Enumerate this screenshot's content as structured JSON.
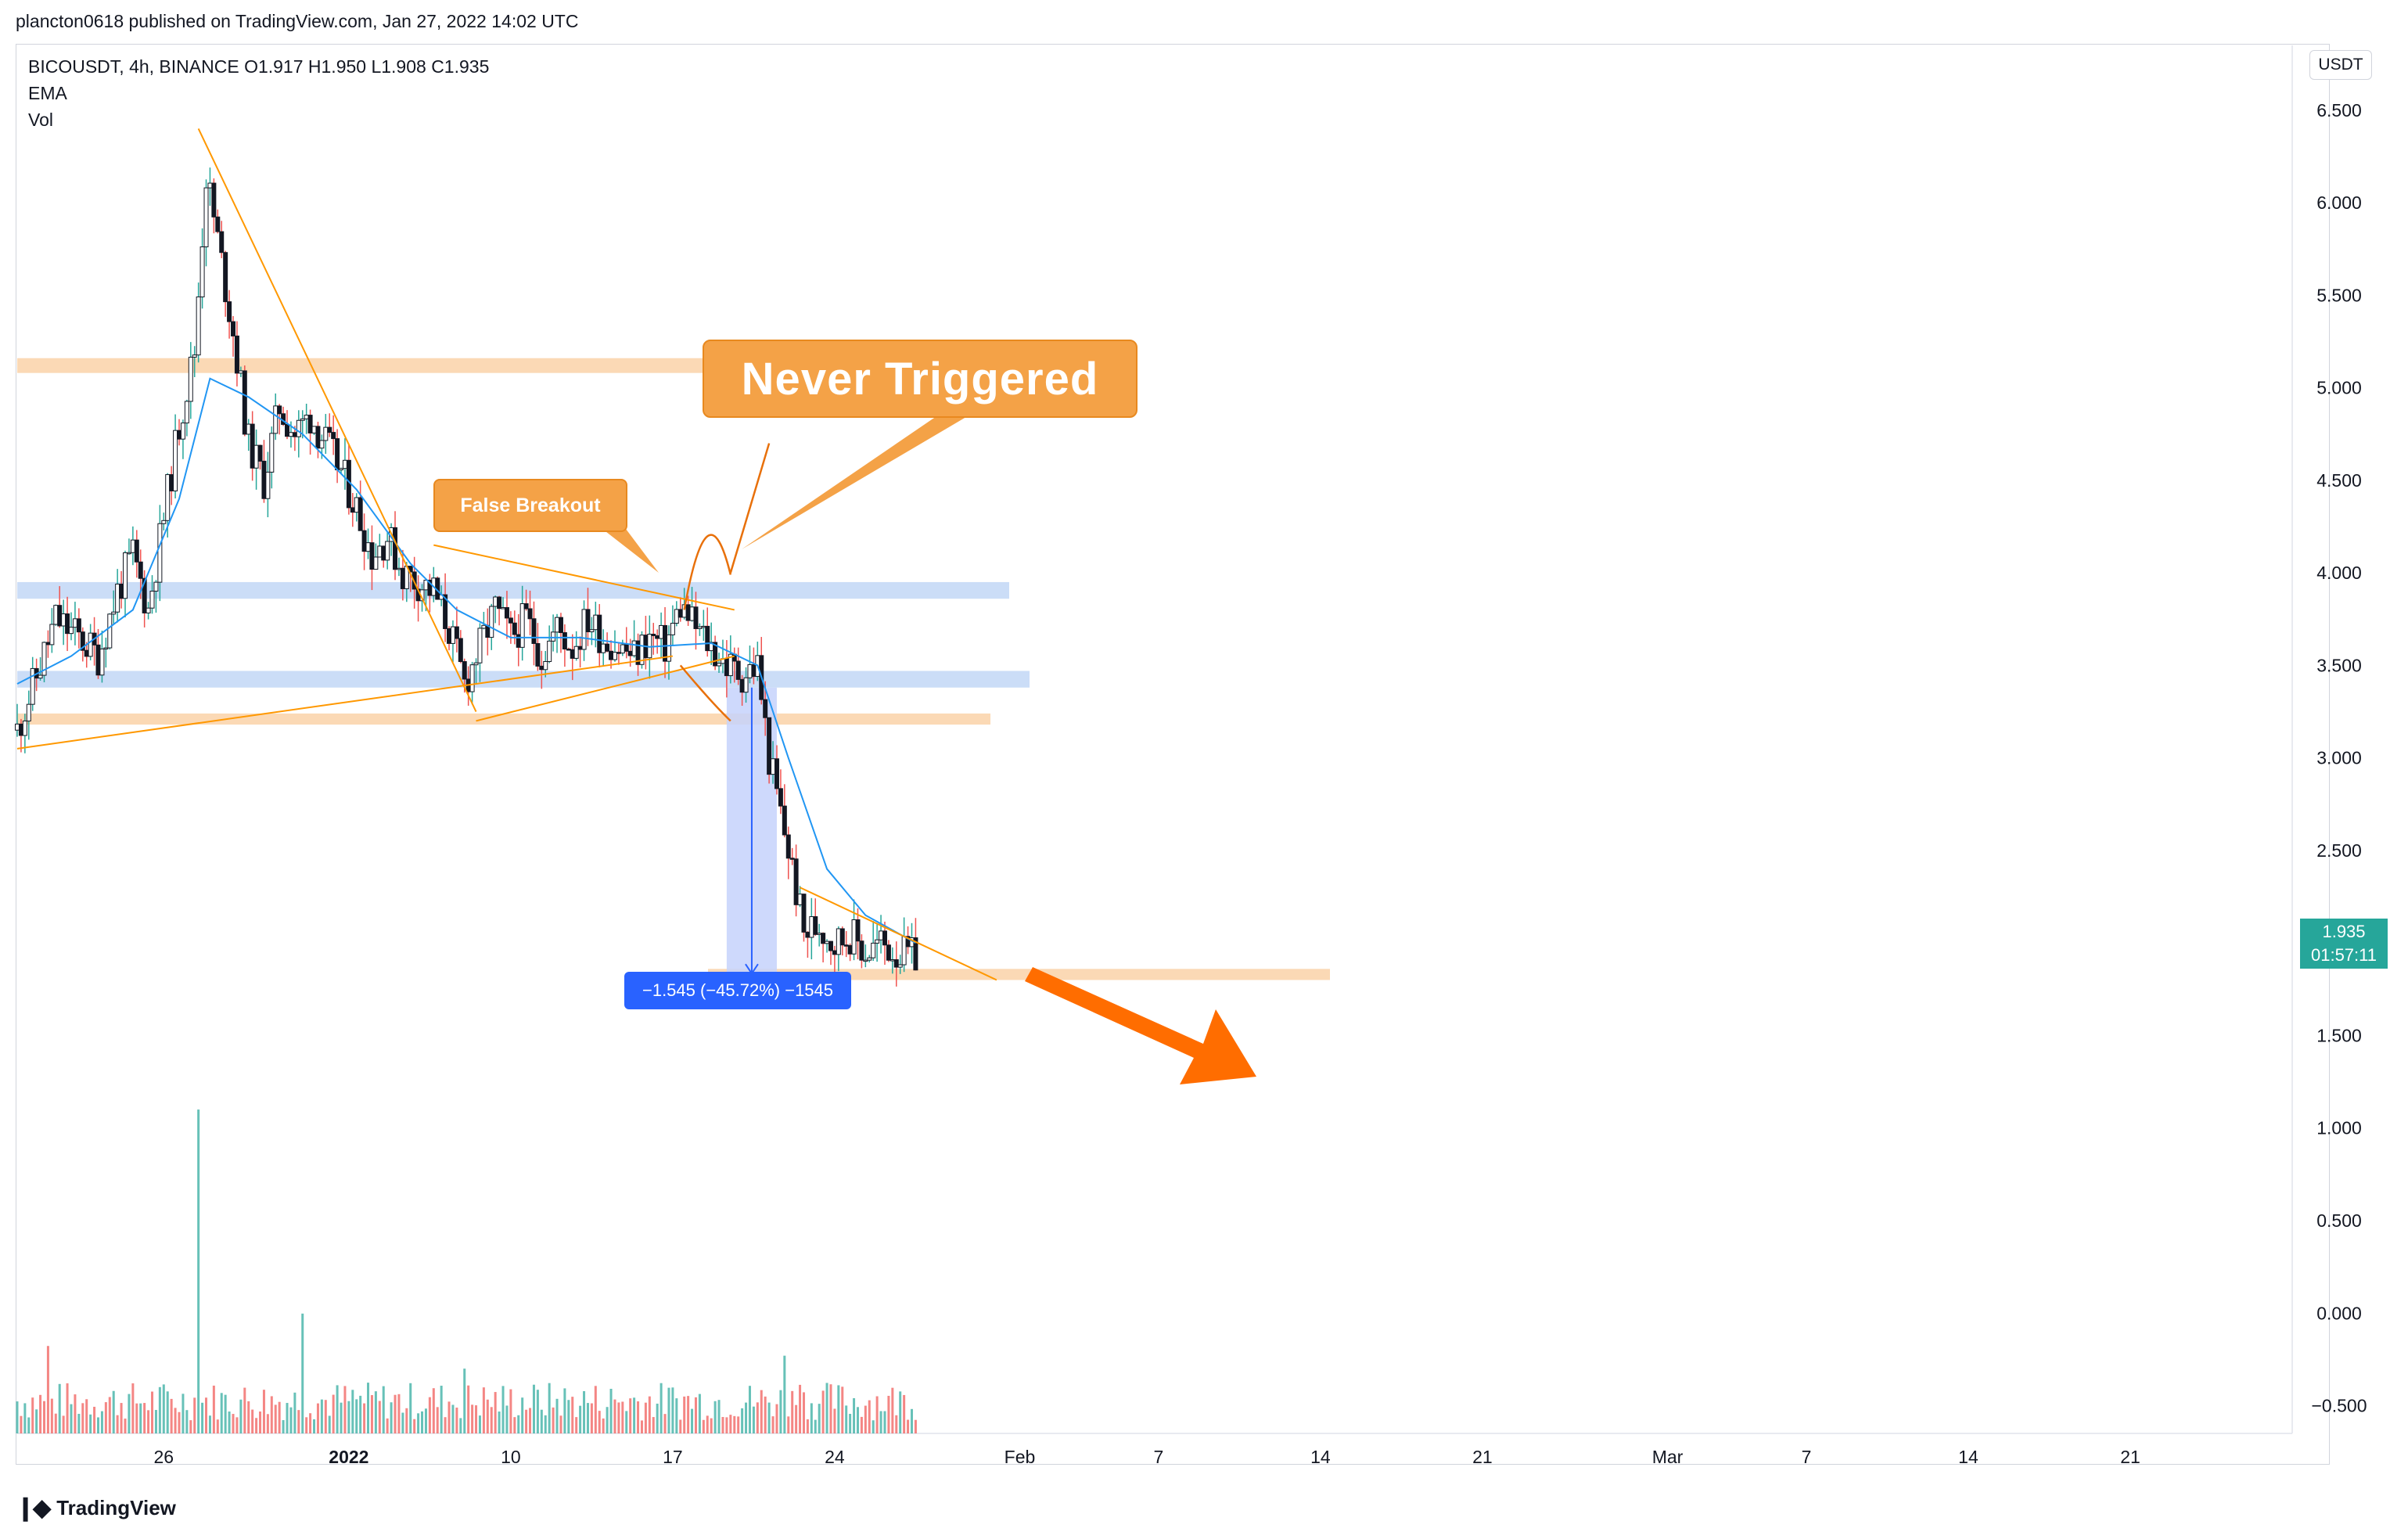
{
  "header": {
    "publish_line": "plancton0618 published on TradingView.com, Jan 27, 2022 14:02 UTC"
  },
  "legend": {
    "symbol_line": "BICOUSDT, 4h, BINANCE  O1.917  H1.950  L1.908  C1.935",
    "indicator_1": "EMA",
    "indicator_2": "Vol"
  },
  "price_scale": {
    "unit": "USDT",
    "last_price": "1.935",
    "countdown": "01:57:11"
  },
  "annotations": {
    "never_triggered": "Never Triggered",
    "false_breakout": "False Breakout",
    "measure": "−1.545 (−45.72%) −1545"
  },
  "footer": {
    "brand": "TradingView"
  },
  "colors": {
    "up": "#26a69a",
    "down": "#ef5350",
    "candle_body": "#131722",
    "ema": "#2196f3",
    "trendline": "#ff9800",
    "support_zone": "#fbd5ad",
    "resistance_zone": "#c5d9f6",
    "measure_box": "#c6d2fb",
    "callout": "#f4a247",
    "forecast_arrow": "#ff6d00",
    "price_tag": "#26a69a"
  },
  "chart_data": {
    "type": "candlestick",
    "symbol": "BICOUSDT",
    "interval": "4h",
    "exchange": "BINANCE",
    "ohlc_last": {
      "open": 1.917,
      "high": 1.95,
      "low": 1.908,
      "close": 1.935
    },
    "y_ticks": [
      "6.500",
      "6.000",
      "5.500",
      "5.000",
      "4.500",
      "4.000",
      "3.500",
      "3.000",
      "2.500",
      "2.000",
      "1.500",
      "1.000",
      "0.500",
      "0.000",
      "−0.500"
    ],
    "y_tick_values": [
      6.5,
      6.0,
      5.5,
      5.0,
      4.5,
      4.0,
      3.5,
      3.0,
      2.5,
      2.0,
      1.5,
      1.0,
      0.5,
      0.0,
      -0.5
    ],
    "ylim": [
      -0.65,
      6.85
    ],
    "x_ticks": [
      "26",
      "2022",
      "10",
      "17",
      "24",
      "Feb",
      "7",
      "14",
      "21",
      "Mar",
      "7",
      "14",
      "21"
    ],
    "x_tick_dates": [
      "2021-12-26",
      "2022-01-03",
      "2022-01-10",
      "2022-01-17",
      "2022-01-24",
      "2022-02-01",
      "2022-02-07",
      "2022-02-14",
      "2022-02-21",
      "2022-03-01",
      "2022-03-07",
      "2022-03-14",
      "2022-03-21"
    ],
    "xlim": [
      "2021-12-19 16:00",
      "2022-03-28"
    ],
    "close_path": [
      [
        "2021-12-19 16:00",
        3.15
      ],
      [
        "2021-12-20 16:00",
        3.5
      ],
      [
        "2021-12-21 08:00",
        3.75
      ],
      [
        "2021-12-22 08:00",
        3.65
      ],
      [
        "2021-12-23 04:00",
        3.55
      ],
      [
        "2021-12-24 00:00",
        3.9
      ],
      [
        "2021-12-24 16:00",
        4.1
      ],
      [
        "2021-12-25 08:00",
        3.8
      ],
      [
        "2021-12-26 00:00",
        4.3
      ],
      [
        "2021-12-26 16:00",
        4.8
      ],
      [
        "2021-12-27 08:00",
        5.2
      ],
      [
        "2021-12-27 20:00",
        6.15
      ],
      [
        "2021-12-28 08:00",
        5.8
      ],
      [
        "2021-12-29 00:00",
        5.3
      ],
      [
        "2021-12-29 16:00",
        4.7
      ],
      [
        "2021-12-30 08:00",
        4.5
      ],
      [
        "2021-12-31 00:00",
        4.9
      ],
      [
        "2021-12-31 16:00",
        4.75
      ],
      [
        "2022-01-01 08:00",
        4.85
      ],
      [
        "2022-01-02 00:00",
        4.7
      ],
      [
        "2022-01-02 16:00",
        4.55
      ],
      [
        "2022-01-03 08:00",
        4.35
      ],
      [
        "2022-01-04 00:00",
        4.1
      ],
      [
        "2022-01-04 16:00",
        4.2
      ],
      [
        "2022-01-05 08:00",
        4.0
      ],
      [
        "2022-01-06 00:00",
        3.95
      ],
      [
        "2022-01-06 16:00",
        3.9
      ],
      [
        "2022-01-07 08:00",
        3.7
      ],
      [
        "2022-01-08 00:00",
        3.4
      ],
      [
        "2022-01-08 16:00",
        3.6
      ],
      [
        "2022-01-09 08:00",
        3.8
      ],
      [
        "2022-01-10 00:00",
        3.65
      ],
      [
        "2022-01-10 16:00",
        3.75
      ],
      [
        "2022-01-11 08:00",
        3.55
      ],
      [
        "2022-01-12 00:00",
        3.7
      ],
      [
        "2022-01-12 16:00",
        3.6
      ],
      [
        "2022-01-13 08:00",
        3.75
      ],
      [
        "2022-01-14 00:00",
        3.65
      ],
      [
        "2022-01-14 16:00",
        3.6
      ],
      [
        "2022-01-15 08:00",
        3.55
      ],
      [
        "2022-01-16 00:00",
        3.65
      ],
      [
        "2022-01-16 16:00",
        3.6
      ],
      [
        "2022-01-17 08:00",
        3.82
      ],
      [
        "2022-01-18 00:00",
        3.7
      ],
      [
        "2022-01-18 16:00",
        3.6
      ],
      [
        "2022-01-19 08:00",
        3.5
      ],
      [
        "2022-01-20 00:00",
        3.45
      ],
      [
        "2022-01-20 16:00",
        3.5
      ],
      [
        "2022-01-21 04:00",
        3.0
      ],
      [
        "2022-01-21 16:00",
        2.7
      ],
      [
        "2022-01-22 04:00",
        2.4
      ],
      [
        "2022-01-22 16:00",
        2.05
      ],
      [
        "2022-01-23 08:00",
        2.1
      ],
      [
        "2022-01-24 00:00",
        2.0
      ],
      [
        "2022-01-24 16:00",
        2.05
      ],
      [
        "2022-01-25 08:00",
        1.95
      ],
      [
        "2022-01-26 00:00",
        2.0
      ],
      [
        "2022-01-26 16:00",
        1.95
      ],
      [
        "2022-01-27 08:00",
        1.92
      ],
      [
        "2022-01-27 12:00",
        1.935
      ]
    ],
    "ema_path": [
      [
        "2021-12-19 16:00",
        3.4
      ],
      [
        "2021-12-22 00:00",
        3.55
      ],
      [
        "2021-12-24 16:00",
        3.8
      ],
      [
        "2021-12-26 16:00",
        4.4
      ],
      [
        "2021-12-28 00:00",
        5.05
      ],
      [
        "2021-12-29 16:00",
        4.95
      ],
      [
        "2022-01-01 00:00",
        4.75
      ],
      [
        "2022-01-03 08:00",
        4.45
      ],
      [
        "2022-01-05 16:00",
        4.05
      ],
      [
        "2022-01-07 16:00",
        3.8
      ],
      [
        "2022-01-10 00:00",
        3.65
      ],
      [
        "2022-01-13 00:00",
        3.65
      ],
      [
        "2022-01-16 00:00",
        3.6
      ],
      [
        "2022-01-18 16:00",
        3.62
      ],
      [
        "2022-01-20 16:00",
        3.5
      ],
      [
        "2022-01-22 00:00",
        3.0
      ],
      [
        "2022-01-23 16:00",
        2.4
      ],
      [
        "2022-01-25 08:00",
        2.15
      ],
      [
        "2022-01-27 12:00",
        2.0
      ]
    ],
    "volume_peaks": [
      [
        "2021-12-21 00:00",
        0.27
      ],
      [
        "2021-12-27 12:00",
        1.0
      ],
      [
        "2022-01-01 00:00",
        0.37
      ],
      [
        "2022-01-08 00:00",
        0.2
      ],
      [
        "2022-01-21 20:00",
        0.24
      ],
      [
        "2022-01-22 12:00",
        0.15
      ]
    ],
    "zones": [
      {
        "kind": "support",
        "from": 5.08,
        "to": 5.16
      },
      {
        "kind": "resistance",
        "from": 3.86,
        "to": 3.95
      },
      {
        "kind": "resistance",
        "from": 3.38,
        "to": 3.47
      },
      {
        "kind": "support",
        "from": 3.18,
        "to": 3.24
      },
      {
        "kind": "support",
        "from": 1.8,
        "to": 1.86
      }
    ],
    "measure": {
      "from_date": "2022-01-19 08:00",
      "to_date": "2022-01-21 12:00",
      "high": 3.38,
      "low": 1.835,
      "change": -1.545,
      "change_pct": -45.72
    },
    "grid": false,
    "legend": "top-left"
  }
}
